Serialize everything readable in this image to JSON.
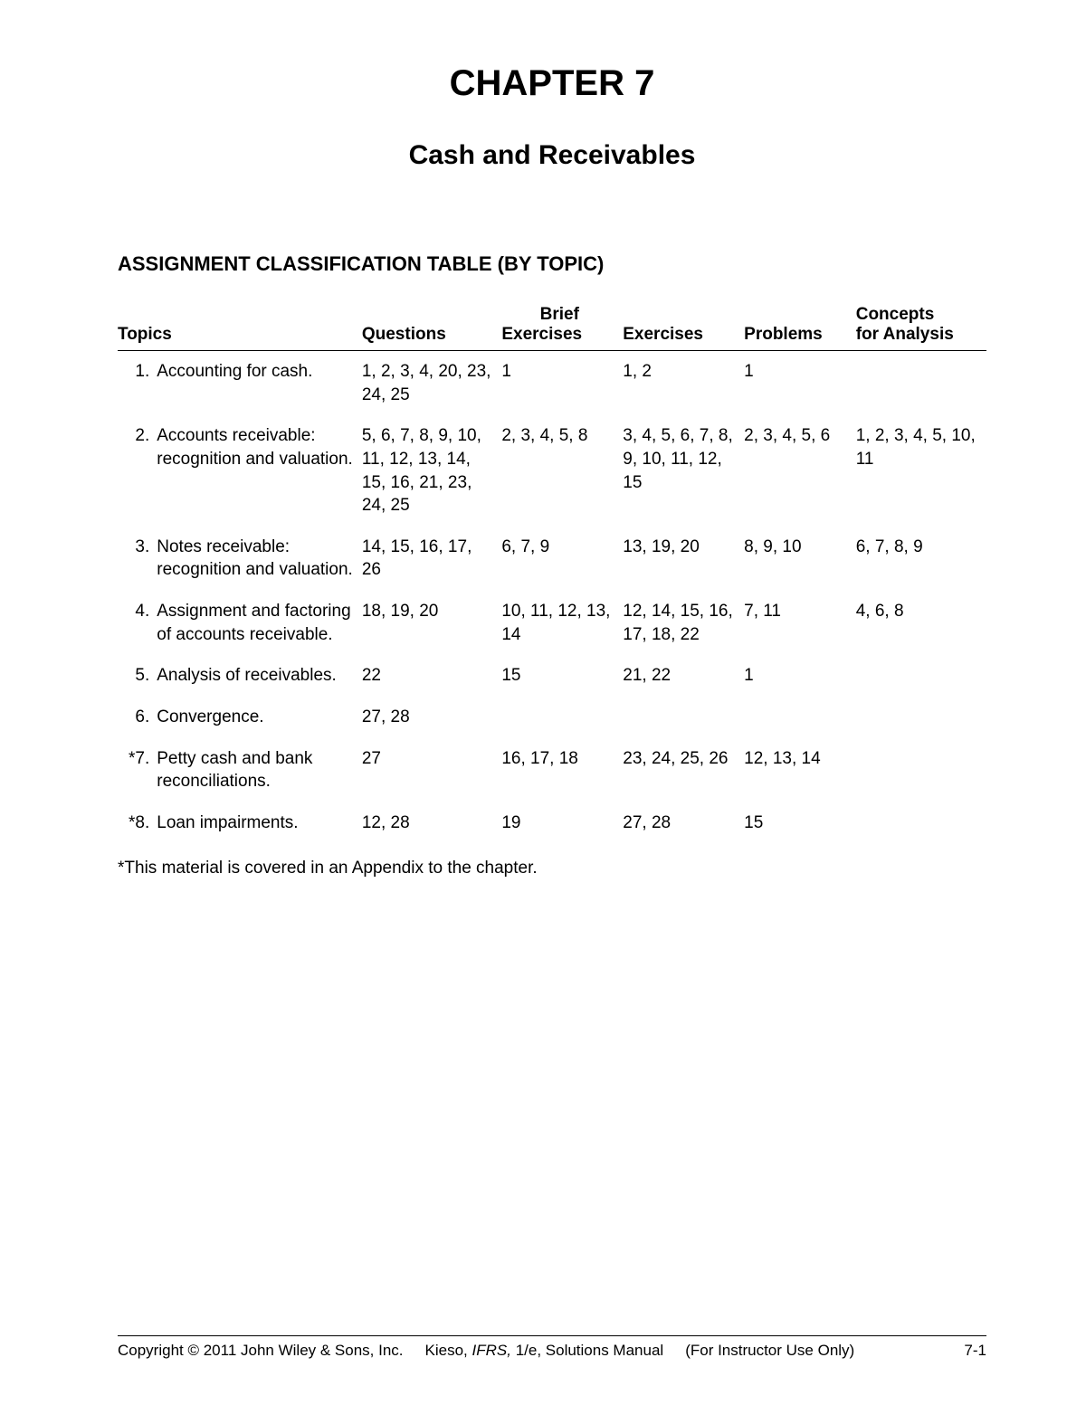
{
  "chapter_title": "CHAPTER 7",
  "chapter_subtitle": "Cash and Receivables",
  "section_heading": "ASSIGNMENT CLASSIFICATION TABLE (BY TOPIC)",
  "table": {
    "headers": {
      "topics": "Topics",
      "questions": "Questions",
      "brief_exercises_l1": "Brief",
      "brief_exercises_l2": "Exercises",
      "exercises": "Exercises",
      "problems": "Problems",
      "concepts_l1": "Concepts",
      "concepts_l2": "for Analysis"
    },
    "rows": [
      {
        "num": "1.",
        "topic": "Accounting for cash.",
        "questions": "1, 2, 3, 4, 20, 23, 24, 25",
        "brief": "1",
        "exercises": "1, 2",
        "problems": "1",
        "concepts": ""
      },
      {
        "num": "2.",
        "topic": "Accounts receivable: recognition and valuation.",
        "questions": "5, 6, 7, 8, 9, 10, 11, 12, 13, 14, 15, 16, 21, 23, 24, 25",
        "brief": "2, 3, 4, 5, 8",
        "exercises": "3, 4, 5, 6, 7, 8, 9, 10, 11, 12, 15",
        "problems": "2, 3, 4, 5, 6",
        "concepts": "1, 2, 3, 4, 5, 10, 11"
      },
      {
        "num": "3.",
        "topic": "Notes receivable: recognition and valuation.",
        "questions": "14, 15, 16, 17, 26",
        "brief": "6, 7, 9",
        "exercises": "13, 19, 20",
        "problems": "8, 9, 10",
        "concepts": "6, 7, 8, 9"
      },
      {
        "num": "4.",
        "topic": "Assignment and factoring of accounts receivable.",
        "questions": "18, 19, 20",
        "brief": "10, 11, 12, 13, 14",
        "exercises": "12, 14, 15, 16, 17, 18, 22",
        "problems": "7, 11",
        "concepts": "4, 6, 8"
      },
      {
        "num": "5.",
        "topic": "Analysis of receivables.",
        "questions": "22",
        "brief": "15",
        "exercises": "21, 22",
        "problems": "1",
        "concepts": ""
      },
      {
        "num": "6.",
        "topic": "Convergence.",
        "questions": "27, 28",
        "brief": "",
        "exercises": "",
        "problems": "",
        "concepts": ""
      },
      {
        "num": "*7.",
        "topic": "Petty cash and bank reconciliations.",
        "questions": "27",
        "brief": "16, 17, 18",
        "exercises": "23, 24, 25, 26",
        "problems": "12, 13, 14",
        "concepts": ""
      },
      {
        "num": "*8.",
        "topic": "Loan impairments.",
        "questions": "12, 28",
        "brief": "19",
        "exercises": "27, 28",
        "problems": "15",
        "concepts": ""
      }
    ]
  },
  "footnote": "*This material is covered in an Appendix to the chapter.",
  "footer": {
    "copyright": "Copyright © 2011 John Wiley & Sons, Inc.",
    "book_prefix": "Kieso, ",
    "book_italic": "IFRS,",
    "book_suffix": " 1/e, Solutions Manual",
    "note": "(For Instructor Use Only)",
    "page": "7-1"
  }
}
